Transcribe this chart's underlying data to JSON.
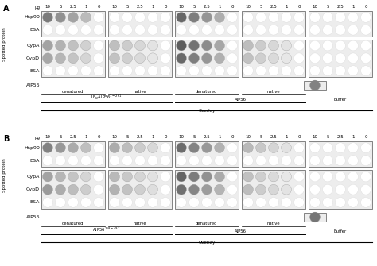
{
  "ug_labels": [
    "10",
    "5",
    "2.5",
    "1",
    "0"
  ],
  "row_labels": [
    "Hsp90",
    "BSA",
    "CypA",
    "CypD",
    "BSA"
  ],
  "aip56_label": "AIP56",
  "y_axis_label": "Spotted protein",
  "overlay_label": "Overlay",
  "panel_labels": [
    "A",
    "B"
  ],
  "group_label_A": [
    "LF$_N$AIP56$^{1-261}$",
    "AIP56",
    "Buffer"
  ],
  "group_label_B": [
    "AIP56$^{258-497}$",
    "AIP56",
    "Buffer"
  ],
  "panel_A_dots": {
    "g0": [
      [
        0.72,
        0.6,
        0.5,
        0.37,
        0
      ],
      [
        0,
        0,
        0,
        0,
        0
      ],
      [
        0.5,
        0.42,
        0.34,
        0.25,
        0
      ],
      [
        0.48,
        0.4,
        0.32,
        0.23,
        0
      ],
      [
        0,
        0,
        0,
        0,
        0
      ]
    ],
    "g1": [
      [
        0,
        0,
        0,
        0,
        0
      ],
      [
        0,
        0,
        0,
        0,
        0
      ],
      [
        0.35,
        0.28,
        0.22,
        0.15,
        0
      ],
      [
        0.33,
        0.26,
        0.2,
        0.13,
        0
      ],
      [
        0,
        0,
        0,
        0,
        0
      ]
    ],
    "g2": [
      [
        0.82,
        0.7,
        0.58,
        0.44,
        0
      ],
      [
        0,
        0,
        0,
        0,
        0
      ],
      [
        0.88,
        0.76,
        0.63,
        0.48,
        0
      ],
      [
        0.82,
        0.7,
        0.57,
        0.43,
        0
      ],
      [
        0,
        0,
        0,
        0,
        0
      ]
    ],
    "g3": [
      [
        0,
        0,
        0,
        0,
        0
      ],
      [
        0,
        0,
        0,
        0,
        0
      ],
      [
        0.36,
        0.28,
        0.22,
        0.15,
        0
      ],
      [
        0.34,
        0.26,
        0.2,
        0.13,
        0
      ],
      [
        0,
        0,
        0,
        0,
        0
      ]
    ],
    "g4": [
      [
        0,
        0,
        0,
        0,
        0
      ],
      [
        0,
        0,
        0,
        0,
        0
      ],
      [
        0,
        0,
        0,
        0,
        0
      ],
      [
        0,
        0,
        0,
        0,
        0
      ],
      [
        0,
        0,
        0,
        0,
        0
      ]
    ]
  },
  "panel_B_dots": {
    "g0": [
      [
        0.68,
        0.56,
        0.46,
        0.35,
        0
      ],
      [
        0,
        0,
        0,
        0,
        0
      ],
      [
        0.5,
        0.4,
        0.32,
        0.23,
        0
      ],
      [
        0.55,
        0.45,
        0.36,
        0.27,
        0
      ],
      [
        0,
        0,
        0,
        0,
        0
      ]
    ],
    "g1": [
      [
        0.45,
        0.36,
        0.28,
        0.21,
        0
      ],
      [
        0,
        0,
        0,
        0,
        0
      ],
      [
        0.38,
        0.3,
        0.23,
        0.16,
        0
      ],
      [
        0.42,
        0.33,
        0.26,
        0.18,
        0
      ],
      [
        0,
        0,
        0,
        0,
        0
      ]
    ],
    "g2": [
      [
        0.8,
        0.68,
        0.56,
        0.42,
        0
      ],
      [
        0,
        0,
        0,
        0,
        0
      ],
      [
        0.84,
        0.72,
        0.6,
        0.46,
        0
      ],
      [
        0.78,
        0.66,
        0.54,
        0.41,
        0
      ],
      [
        0,
        0,
        0,
        0,
        0
      ]
    ],
    "g3": [
      [
        0.38,
        0.3,
        0.23,
        0.16,
        0
      ],
      [
        0,
        0,
        0,
        0,
        0
      ],
      [
        0.34,
        0.26,
        0.2,
        0.13,
        0
      ],
      [
        0.36,
        0.28,
        0.22,
        0.15,
        0
      ],
      [
        0,
        0,
        0,
        0,
        0
      ]
    ],
    "g4": [
      [
        0,
        0,
        0,
        0,
        0
      ],
      [
        0,
        0,
        0,
        0,
        0
      ],
      [
        0,
        0,
        0,
        0,
        0
      ],
      [
        0,
        0,
        0,
        0,
        0
      ],
      [
        0,
        0,
        0,
        0,
        0
      ]
    ]
  },
  "aip56_intensity_A": 0.68,
  "aip56_intensity_B": 0.75
}
